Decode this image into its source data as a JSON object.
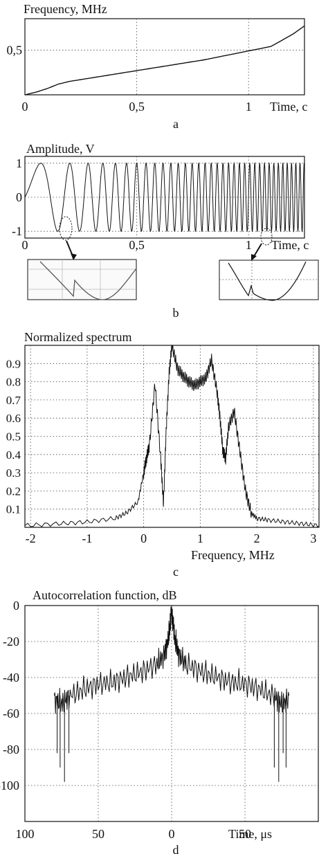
{
  "chart_data": [
    {
      "type": "line",
      "panel_label": "a",
      "ylabel": "Frequency, MHz",
      "xlabel": "Time, c",
      "xlim": [
        0,
        1.25
      ],
      "ylim": [
        0,
        0.85
      ],
      "xticks": [
        {
          "v": 0,
          "label": "0"
        },
        {
          "v": 0.5,
          "label": "0,5"
        },
        {
          "v": 1,
          "label": "1"
        }
      ],
      "yticks": [
        {
          "v": 0.5,
          "label": "0,5"
        }
      ],
      "grid": true,
      "x": [
        0,
        0.05,
        0.1,
        0.15,
        0.2,
        0.3,
        0.4,
        0.5,
        0.6,
        0.7,
        0.8,
        0.9,
        1.0,
        1.1,
        1.2,
        1.25
      ],
      "y": [
        0,
        0.03,
        0.07,
        0.12,
        0.15,
        0.19,
        0.23,
        0.27,
        0.31,
        0.35,
        0.39,
        0.44,
        0.49,
        0.54,
        0.68,
        0.77
      ]
    },
    {
      "type": "line",
      "panel_label": "b",
      "ylabel": "Amplitude, V",
      "xlabel": "Time, c",
      "xlim": [
        0,
        1.25
      ],
      "ylim": [
        -1.2,
        1.2
      ],
      "xticks": [
        {
          "v": 0,
          "label": "0"
        },
        {
          "v": 0.5,
          "label": "0,5"
        },
        {
          "v": 1,
          "label": "1"
        }
      ],
      "yticks": [
        {
          "v": 1,
          "label": "1"
        },
        {
          "v": 0,
          "label": "0"
        },
        {
          "v": -1,
          "label": "-1"
        }
      ],
      "grid": true,
      "signal": "chirp, amplitude 1, instantaneous frequency rising from ~0 toward ~0.8 (cycles per plotted unit grows along time); two small phase discontinuities near t = 0.2 and t = 1.2 marked with dotted ellipses and shown in zoomed insets"
    },
    {
      "type": "line",
      "panel_label": "c",
      "ylabel": "Normalized spectrum",
      "xlabel": "Frequency, MHz",
      "xlim": [
        -2.1,
        3.1
      ],
      "ylim": [
        0,
        1.0
      ],
      "xticks": [
        {
          "v": -2,
          "label": "-2"
        },
        {
          "v": -1,
          "label": "-1"
        },
        {
          "v": 0,
          "label": "0"
        },
        {
          "v": 1,
          "label": "1"
        },
        {
          "v": 2,
          "label": "2"
        },
        {
          "v": 3,
          "label": "3"
        }
      ],
      "yticks": [
        {
          "v": 0.1,
          "label": "0.1"
        },
        {
          "v": 0.2,
          "label": "0.2"
        },
        {
          "v": 0.3,
          "label": "0.3"
        },
        {
          "v": 0.4,
          "label": "0.4"
        },
        {
          "v": 0.5,
          "label": "0.5"
        },
        {
          "v": 0.6,
          "label": "0.6"
        },
        {
          "v": 0.7,
          "label": "0.7"
        },
        {
          "v": 0.8,
          "label": "0.8"
        },
        {
          "v": 0.9,
          "label": "0.9"
        }
      ],
      "grid": true,
      "x": [
        -2.1,
        -1.5,
        -1.0,
        -0.5,
        -0.3,
        -0.1,
        0.0,
        0.05,
        0.1,
        0.2,
        0.3,
        0.35,
        0.4,
        0.45,
        0.5,
        0.6,
        0.7,
        0.8,
        0.9,
        1.0,
        1.1,
        1.2,
        1.3,
        1.35,
        1.4,
        1.45,
        1.5,
        1.6,
        1.7,
        1.8,
        1.9,
        2.0,
        2.2,
        2.5,
        2.8,
        3.1
      ],
      "y": [
        0.01,
        0.02,
        0.03,
        0.05,
        0.08,
        0.14,
        0.3,
        0.38,
        0.45,
        0.79,
        0.38,
        0.13,
        0.55,
        0.85,
        1.0,
        0.87,
        0.83,
        0.8,
        0.78,
        0.8,
        0.82,
        0.92,
        0.74,
        0.6,
        0.42,
        0.38,
        0.55,
        0.64,
        0.42,
        0.2,
        0.08,
        0.05,
        0.04,
        0.03,
        0.02,
        0.01
      ]
    },
    {
      "type": "line",
      "panel_label": "d",
      "ylabel": "Autocorrelation function, dB",
      "xlabel": "Time, μs",
      "xlim": [
        -100,
        100
      ],
      "ylim": [
        -120,
        0
      ],
      "xticks": [
        {
          "v": -100,
          "label": "100"
        },
        {
          "v": -50,
          "label": "50"
        },
        {
          "v": 0,
          "label": "0"
        },
        {
          "v": 50,
          "label": "50"
        }
      ],
      "yticks": [
        {
          "v": 0,
          "label": "0"
        },
        {
          "v": -20,
          "label": "-20"
        },
        {
          "v": -40,
          "label": "-40"
        },
        {
          "v": -60,
          "label": "-60"
        },
        {
          "v": -80,
          "label": "-80"
        },
        {
          "v": -100,
          "label": "-100"
        }
      ],
      "grid": true,
      "x": [
        -80,
        -75,
        -70,
        -60,
        -50,
        -40,
        -30,
        -20,
        -10,
        -5,
        -2,
        0,
        2,
        5,
        10,
        20,
        30,
        40,
        50,
        60,
        70,
        75,
        80
      ],
      "y": [
        -50,
        -52,
        -48,
        -44,
        -41,
        -40,
        -37,
        -34,
        -30,
        -25,
        -15,
        0,
        -15,
        -25,
        -30,
        -34,
        -37,
        -40,
        -41,
        -44,
        -48,
        -52,
        -50
      ]
    }
  ]
}
